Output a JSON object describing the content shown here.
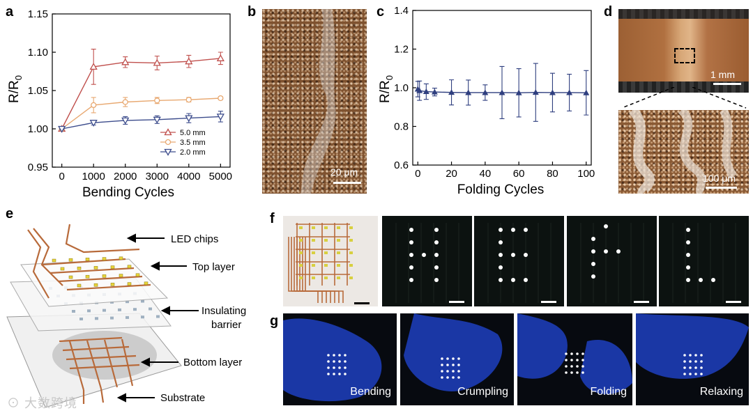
{
  "panels": {
    "a": "a",
    "b": "b",
    "c": "c",
    "d": "d",
    "e": "e",
    "f": "f",
    "g": "g"
  },
  "chart_data": [
    {
      "type": "line",
      "panel": "a",
      "title": "",
      "xlabel": "Bending Cycles",
      "ylabel": "R/R0",
      "x": [
        0,
        1000,
        2000,
        3000,
        4000,
        5000
      ],
      "xlim": [
        -300,
        5300
      ],
      "ylim": [
        0.95,
        1.15
      ],
      "xticks": [
        "0",
        "1000",
        "2000",
        "3000",
        "4000",
        "5000"
      ],
      "yticks": [
        "0.95",
        "1.00",
        "1.05",
        "1.10",
        "1.15"
      ],
      "legend_position": "bottom-right",
      "series": [
        {
          "name": "5.0 mm",
          "color": "#c0504d",
          "marker": "triangle-up",
          "values": [
            1.0,
            1.081,
            1.087,
            1.086,
            1.088,
            1.092
          ],
          "errors": [
            0.001,
            0.023,
            0.007,
            0.009,
            0.008,
            0.008
          ]
        },
        {
          "name": "3.5 mm",
          "color": "#e8a870",
          "marker": "circle",
          "values": [
            1.0,
            1.031,
            1.035,
            1.037,
            1.038,
            1.04
          ],
          "errors": [
            0.001,
            0.01,
            0.006,
            0.004,
            0.003,
            0.002
          ]
        },
        {
          "name": "2.0 mm",
          "color": "#3c4c8c",
          "marker": "triangle-down",
          "values": [
            1.0,
            1.008,
            1.011,
            1.012,
            1.014,
            1.016
          ],
          "errors": [
            0.001,
            0.003,
            0.005,
            0.005,
            0.006,
            0.007
          ]
        }
      ]
    },
    {
      "type": "line",
      "panel": "c",
      "title": "",
      "xlabel": "Folding Cycles",
      "ylabel": "R/R0",
      "xlim": [
        -3,
        103
      ],
      "ylim": [
        0.6,
        1.4
      ],
      "xticks": [
        "0",
        "20",
        "40",
        "60",
        "80",
        "100"
      ],
      "yticks": [
        "0.6",
        "0.8",
        "1.0",
        "1.2",
        "1.4"
      ],
      "series": [
        {
          "name": "R/R0",
          "color": "#2f3f7f",
          "marker": "triangle-up",
          "x": [
            0,
            1,
            5,
            10,
            20,
            30,
            40,
            50,
            60,
            70,
            80,
            90,
            100
          ],
          "values": [
            0.993,
            0.985,
            0.98,
            0.978,
            0.976,
            0.975,
            0.975,
            0.975,
            0.974,
            0.976,
            0.975,
            0.975,
            0.974
          ],
          "errors": [
            0.04,
            0.05,
            0.04,
            0.02,
            0.065,
            0.065,
            0.04,
            0.135,
            0.125,
            0.15,
            0.1,
            0.095,
            0.115
          ]
        }
      ]
    }
  ],
  "ylabel_a": {
    "main": "R/R",
    "sub": "0"
  },
  "ylabel_c": {
    "main": "R/R",
    "sub": "0"
  },
  "scalebars": {
    "b": "20 μm",
    "d_top": "1 mm",
    "d_bottom": "100 μm"
  },
  "diagram_e": {
    "labels": [
      "LED chips",
      "Top layer",
      "Insulating",
      "barrier",
      "Bottom layer",
      "Substrate"
    ]
  },
  "panel_g": {
    "labels": [
      "Bending",
      "Crumpling",
      "Folding",
      "Relaxing"
    ]
  },
  "watermark": "大数跨境",
  "colors": {
    "copper": "#b86a3a",
    "led": "#e8d43a",
    "axis": "#000000"
  }
}
